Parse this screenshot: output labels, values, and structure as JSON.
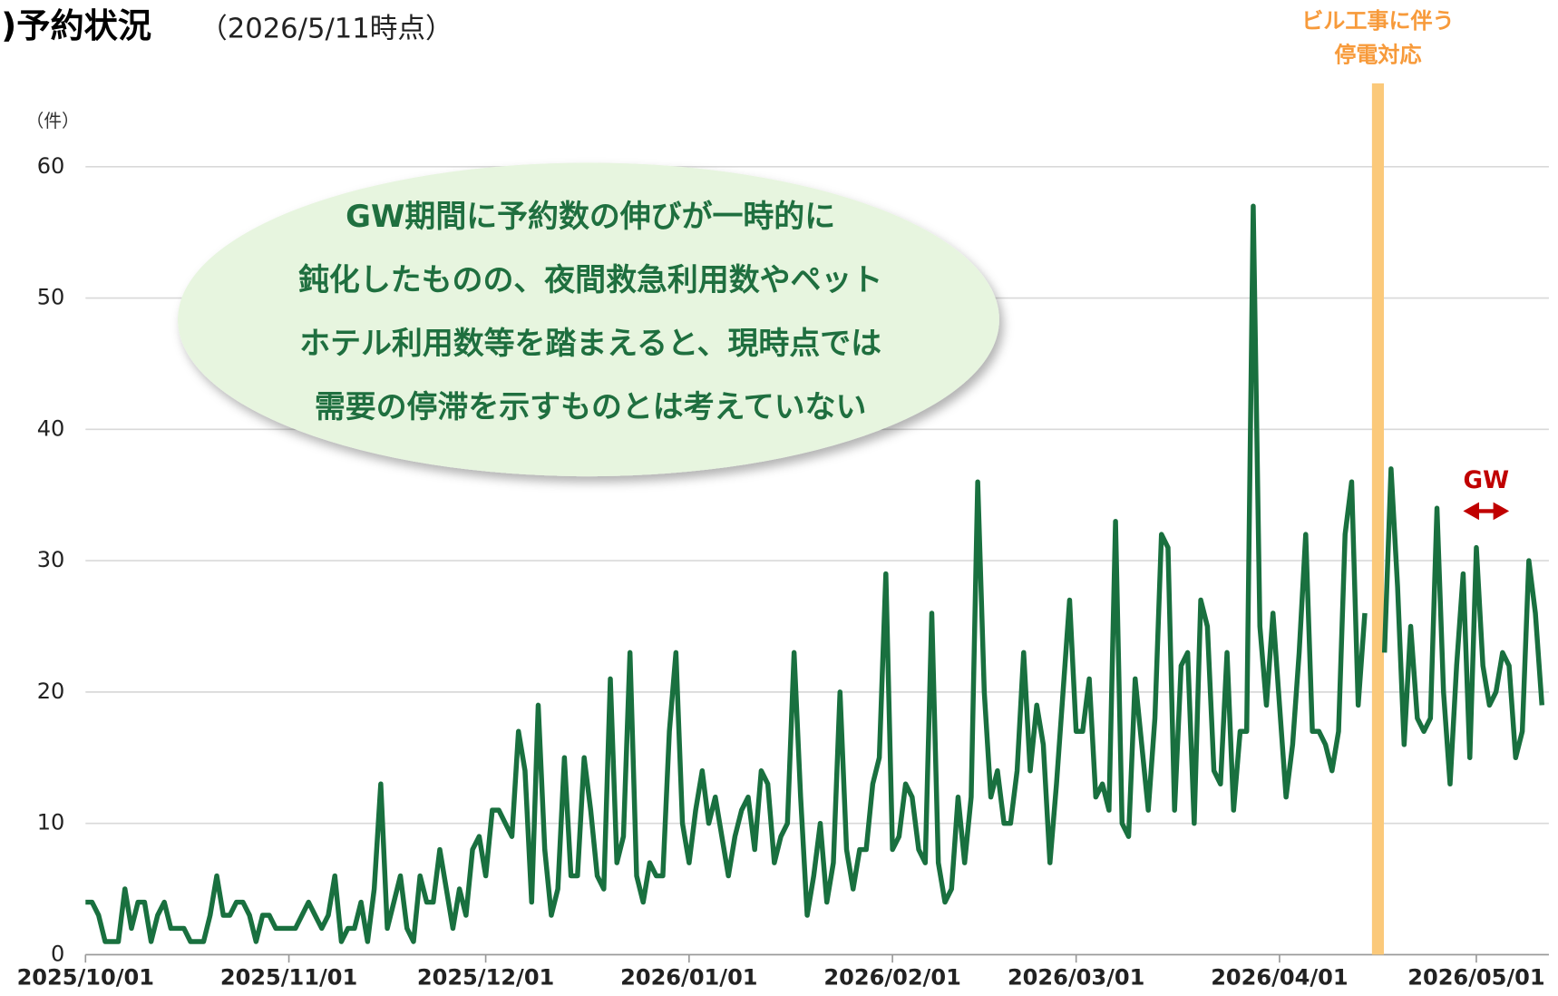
{
  "chart_data": {
    "type": "line",
    "title": ")予約状況",
    "subtitle": "（2026/5/11時点）",
    "y_unit": "（件）",
    "callout": [
      "GW期間に予約数の伸びが一時的に",
      "鈍化したものの、夜間救急利用数やペット",
      "ホテル利用数等を踏まえると、現時点では",
      "需要の停滞を示すものとは考えていない"
    ],
    "band": {
      "labels": [
        "ビル工事に伴う",
        "停電対応"
      ],
      "x": "2026/04/16",
      "color": "#fbc97a"
    },
    "gw": {
      "label": "GW",
      "range": [
        "2026/04/29",
        "2026/05/06"
      ],
      "color": "#c00000"
    },
    "xlim": [
      "2025/10/01",
      "2026/05/11"
    ],
    "ylim": [
      0,
      60
    ],
    "yticks": [
      0,
      10,
      20,
      30,
      40,
      50,
      60
    ],
    "xticks": [
      "2025/10/01",
      "2025/11/01",
      "2025/12/01",
      "2026/01/01",
      "2026/02/01",
      "2026/03/01",
      "2026/04/01",
      "2026/05/01"
    ],
    "grid": true,
    "x": [
      "2025/10/01",
      "2025/10/02",
      "2025/10/03",
      "2025/10/04",
      "2025/10/05",
      "2025/10/06",
      "2025/10/07",
      "2025/10/08",
      "2025/10/09",
      "2025/10/10",
      "2025/10/11",
      "2025/10/12",
      "2025/10/13",
      "2025/10/14",
      "2025/10/15",
      "2025/10/16",
      "2025/10/17",
      "2025/10/18",
      "2025/10/19",
      "2025/10/20",
      "2025/10/21",
      "2025/10/22",
      "2025/10/23",
      "2025/10/24",
      "2025/10/25",
      "2025/10/26",
      "2025/10/27",
      "2025/10/28",
      "2025/10/29",
      "2025/10/30",
      "2025/10/31",
      "2025/11/01",
      "2025/11/02",
      "2025/11/03",
      "2025/11/04",
      "2025/11/05",
      "2025/11/06",
      "2025/11/07",
      "2025/11/08",
      "2025/11/09",
      "2025/11/10",
      "2025/11/11",
      "2025/11/12",
      "2025/11/13",
      "2025/11/14",
      "2025/11/15",
      "2025/11/16",
      "2025/11/17",
      "2025/11/18",
      "2025/11/19",
      "2025/11/20",
      "2025/11/21",
      "2025/11/22",
      "2025/11/23",
      "2025/11/24",
      "2025/11/25",
      "2025/11/26",
      "2025/11/27",
      "2025/11/28",
      "2025/11/29",
      "2025/11/30",
      "2025/12/01",
      "2025/12/02",
      "2025/12/03",
      "2025/12/04",
      "2025/12/05",
      "2025/12/06",
      "2025/12/07",
      "2025/12/08",
      "2025/12/09",
      "2025/12/10",
      "2025/12/11",
      "2025/12/12",
      "2025/12/13",
      "2025/12/14",
      "2025/12/15",
      "2025/12/16",
      "2025/12/17",
      "2025/12/18",
      "2025/12/19",
      "2025/12/20",
      "2025/12/21",
      "2025/12/22",
      "2025/12/23",
      "2025/12/24",
      "2025/12/25",
      "2025/12/26",
      "2025/12/27",
      "2025/12/28",
      "2025/12/29",
      "2025/12/30",
      "2025/12/31",
      "2026/01/01",
      "2026/01/02",
      "2026/01/03",
      "2026/01/04",
      "2026/01/05",
      "2026/01/06",
      "2026/01/07",
      "2026/01/08",
      "2026/01/09",
      "2026/01/10",
      "2026/01/11",
      "2026/01/12",
      "2026/01/13",
      "2026/01/14",
      "2026/01/15",
      "2026/01/16",
      "2026/01/17",
      "2026/01/18",
      "2026/01/19",
      "2026/01/20",
      "2026/01/21",
      "2026/01/22",
      "2026/01/23",
      "2026/01/24",
      "2026/01/25",
      "2026/01/26",
      "2026/01/27",
      "2026/01/28",
      "2026/01/29",
      "2026/01/30",
      "2026/01/31",
      "2026/02/01",
      "2026/02/02",
      "2026/02/03",
      "2026/02/04",
      "2026/02/05",
      "2026/02/06",
      "2026/02/07",
      "2026/02/08",
      "2026/02/09",
      "2026/02/10",
      "2026/02/11",
      "2026/02/12",
      "2026/02/13",
      "2026/02/14",
      "2026/02/15",
      "2026/02/16",
      "2026/02/17",
      "2026/02/18",
      "2026/02/19",
      "2026/02/20",
      "2026/02/21",
      "2026/02/22",
      "2026/02/23",
      "2026/02/24",
      "2026/02/25",
      "2026/02/26",
      "2026/02/27",
      "2026/02/28",
      "2026/03/01",
      "2026/03/02",
      "2026/03/03",
      "2026/03/04",
      "2026/03/05",
      "2026/03/06",
      "2026/03/07",
      "2026/03/08",
      "2026/03/09",
      "2026/03/10",
      "2026/03/11",
      "2026/03/12",
      "2026/03/13",
      "2026/03/14",
      "2026/03/15",
      "2026/03/16",
      "2026/03/17",
      "2026/03/18",
      "2026/03/19",
      "2026/03/20",
      "2026/03/21",
      "2026/03/22",
      "2026/03/23",
      "2026/03/24",
      "2026/03/25",
      "2026/03/26",
      "2026/03/27",
      "2026/03/28",
      "2026/03/29",
      "2026/03/30",
      "2026/03/31",
      "2026/04/01",
      "2026/04/02",
      "2026/04/03",
      "2026/04/04",
      "2026/04/05",
      "2026/04/06",
      "2026/04/07",
      "2026/04/08",
      "2026/04/09",
      "2026/04/10",
      "2026/04/11",
      "2026/04/12",
      "2026/04/13",
      "2026/04/14",
      "2026/04/15",
      "2026/04/16",
      "2026/04/17",
      "2026/04/18",
      "2026/04/19",
      "2026/04/20",
      "2026/04/21",
      "2026/04/22",
      "2026/04/23",
      "2026/04/24",
      "2026/04/25",
      "2026/04/26",
      "2026/04/27",
      "2026/04/28",
      "2026/04/29",
      "2026/04/30",
      "2026/05/01",
      "2026/05/02",
      "2026/05/03",
      "2026/05/04",
      "2026/05/05",
      "2026/05/06",
      "2026/05/07",
      "2026/05/08",
      "2026/05/09",
      "2026/05/10",
      "2026/05/11"
    ],
    "series": [
      {
        "color": "#19703f",
        "values": [
          4,
          4,
          3,
          1,
          1,
          1,
          5,
          2,
          4,
          4,
          1,
          3,
          4,
          2,
          2,
          2,
          1,
          1,
          1,
          3,
          6,
          3,
          3,
          4,
          4,
          3,
          1,
          3,
          3,
          2,
          2,
          2,
          2,
          3,
          4,
          3,
          2,
          3,
          6,
          1,
          2,
          2,
          4,
          1,
          5,
          13,
          2,
          4,
          6,
          2,
          1,
          6,
          4,
          4,
          8,
          5,
          2,
          5,
          3,
          8,
          9,
          6,
          11,
          11,
          10,
          9,
          17,
          14,
          4,
          19,
          8,
          3,
          5,
          15,
          6,
          6,
          15,
          11,
          6,
          5,
          21,
          7,
          9,
          23,
          6,
          4,
          7,
          6,
          6,
          17,
          23,
          10,
          7,
          11,
          14,
          10,
          12,
          9,
          6,
          9,
          11,
          12,
          8,
          14,
          13,
          7,
          9,
          10,
          23,
          12,
          3,
          6,
          10,
          4,
          7,
          20,
          8,
          5,
          8,
          8,
          13,
          15,
          29,
          8,
          9,
          13,
          12,
          8,
          7,
          26,
          7,
          4,
          5,
          12,
          7,
          12,
          36,
          20,
          12,
          14,
          10,
          10,
          14,
          23,
          14,
          19,
          16,
          7,
          13,
          20,
          27,
          17,
          17,
          21,
          12,
          13,
          11,
          33,
          10,
          9,
          21,
          16,
          11,
          18,
          32,
          31,
          11,
          22,
          23,
          10,
          27,
          25,
          14,
          13,
          23,
          11,
          17,
          17,
          57,
          25,
          19,
          26,
          19,
          12,
          16,
          23,
          32,
          17,
          17,
          16,
          14,
          17,
          32,
          36,
          19,
          26,
          null,
          null,
          23,
          37,
          28,
          16,
          25,
          18,
          17,
          18,
          34,
          20,
          13,
          22,
          29,
          15,
          31,
          22,
          19,
          20,
          23,
          22,
          15,
          17,
          30,
          26,
          19
        ]
      }
    ]
  }
}
